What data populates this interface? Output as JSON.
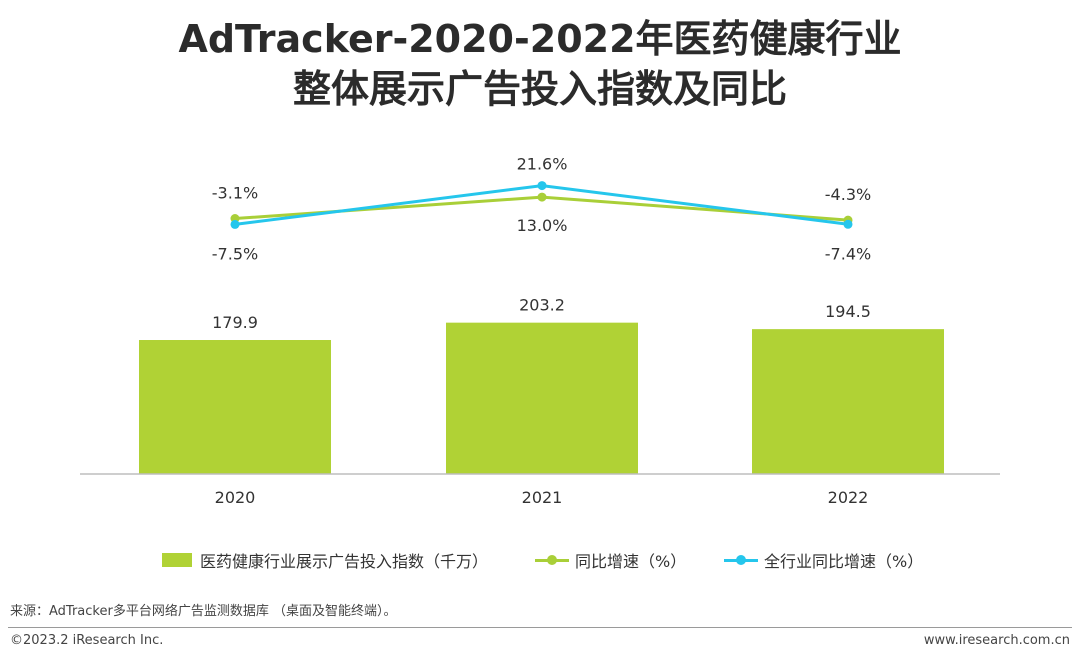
{
  "title": {
    "line1": "AdTracker-2020-2022年医药健康行业",
    "line2": "整体展示广告投入指数及同比"
  },
  "colors": {
    "bar": "#b0d235",
    "industry_line": "#a9cf38",
    "overall_line": "#25c6ec",
    "axis": "#bdbdbd"
  },
  "chart_data": {
    "type": "bar+line",
    "categories": [
      "2020",
      "2021",
      "2022"
    ],
    "bar_series": {
      "name": "医药健康行业展示广告投入指数（千万）",
      "values": [
        179.9,
        203.2,
        194.5
      ],
      "labels": [
        "179.9",
        "203.2",
        "194.5"
      ]
    },
    "line_series": [
      {
        "name": "同比增速（%）",
        "values": [
          -3.1,
          13.0,
          -4.3
        ],
        "labels": [
          "-3.1%",
          "13.0%",
          "-4.3%"
        ]
      },
      {
        "name": "全行业同比增速（%）",
        "values": [
          -7.5,
          21.6,
          -7.4
        ],
        "labels": [
          "-7.5%",
          "21.6%",
          "-7.4%"
        ]
      }
    ],
    "legend_position": "bottom"
  },
  "legend": {
    "bar_label": "医药健康行业展示广告投入指数（千万）",
    "line1_label": "同比增速（%）",
    "line2_label": "全行业同比增速（%）"
  },
  "source": "来源：AdTracker多平台网络广告监测数据库 （桌面及智能终端）。",
  "footer": {
    "copyright": "©2023.2 iResearch Inc.",
    "website": "www.iresearch.com.cn"
  }
}
